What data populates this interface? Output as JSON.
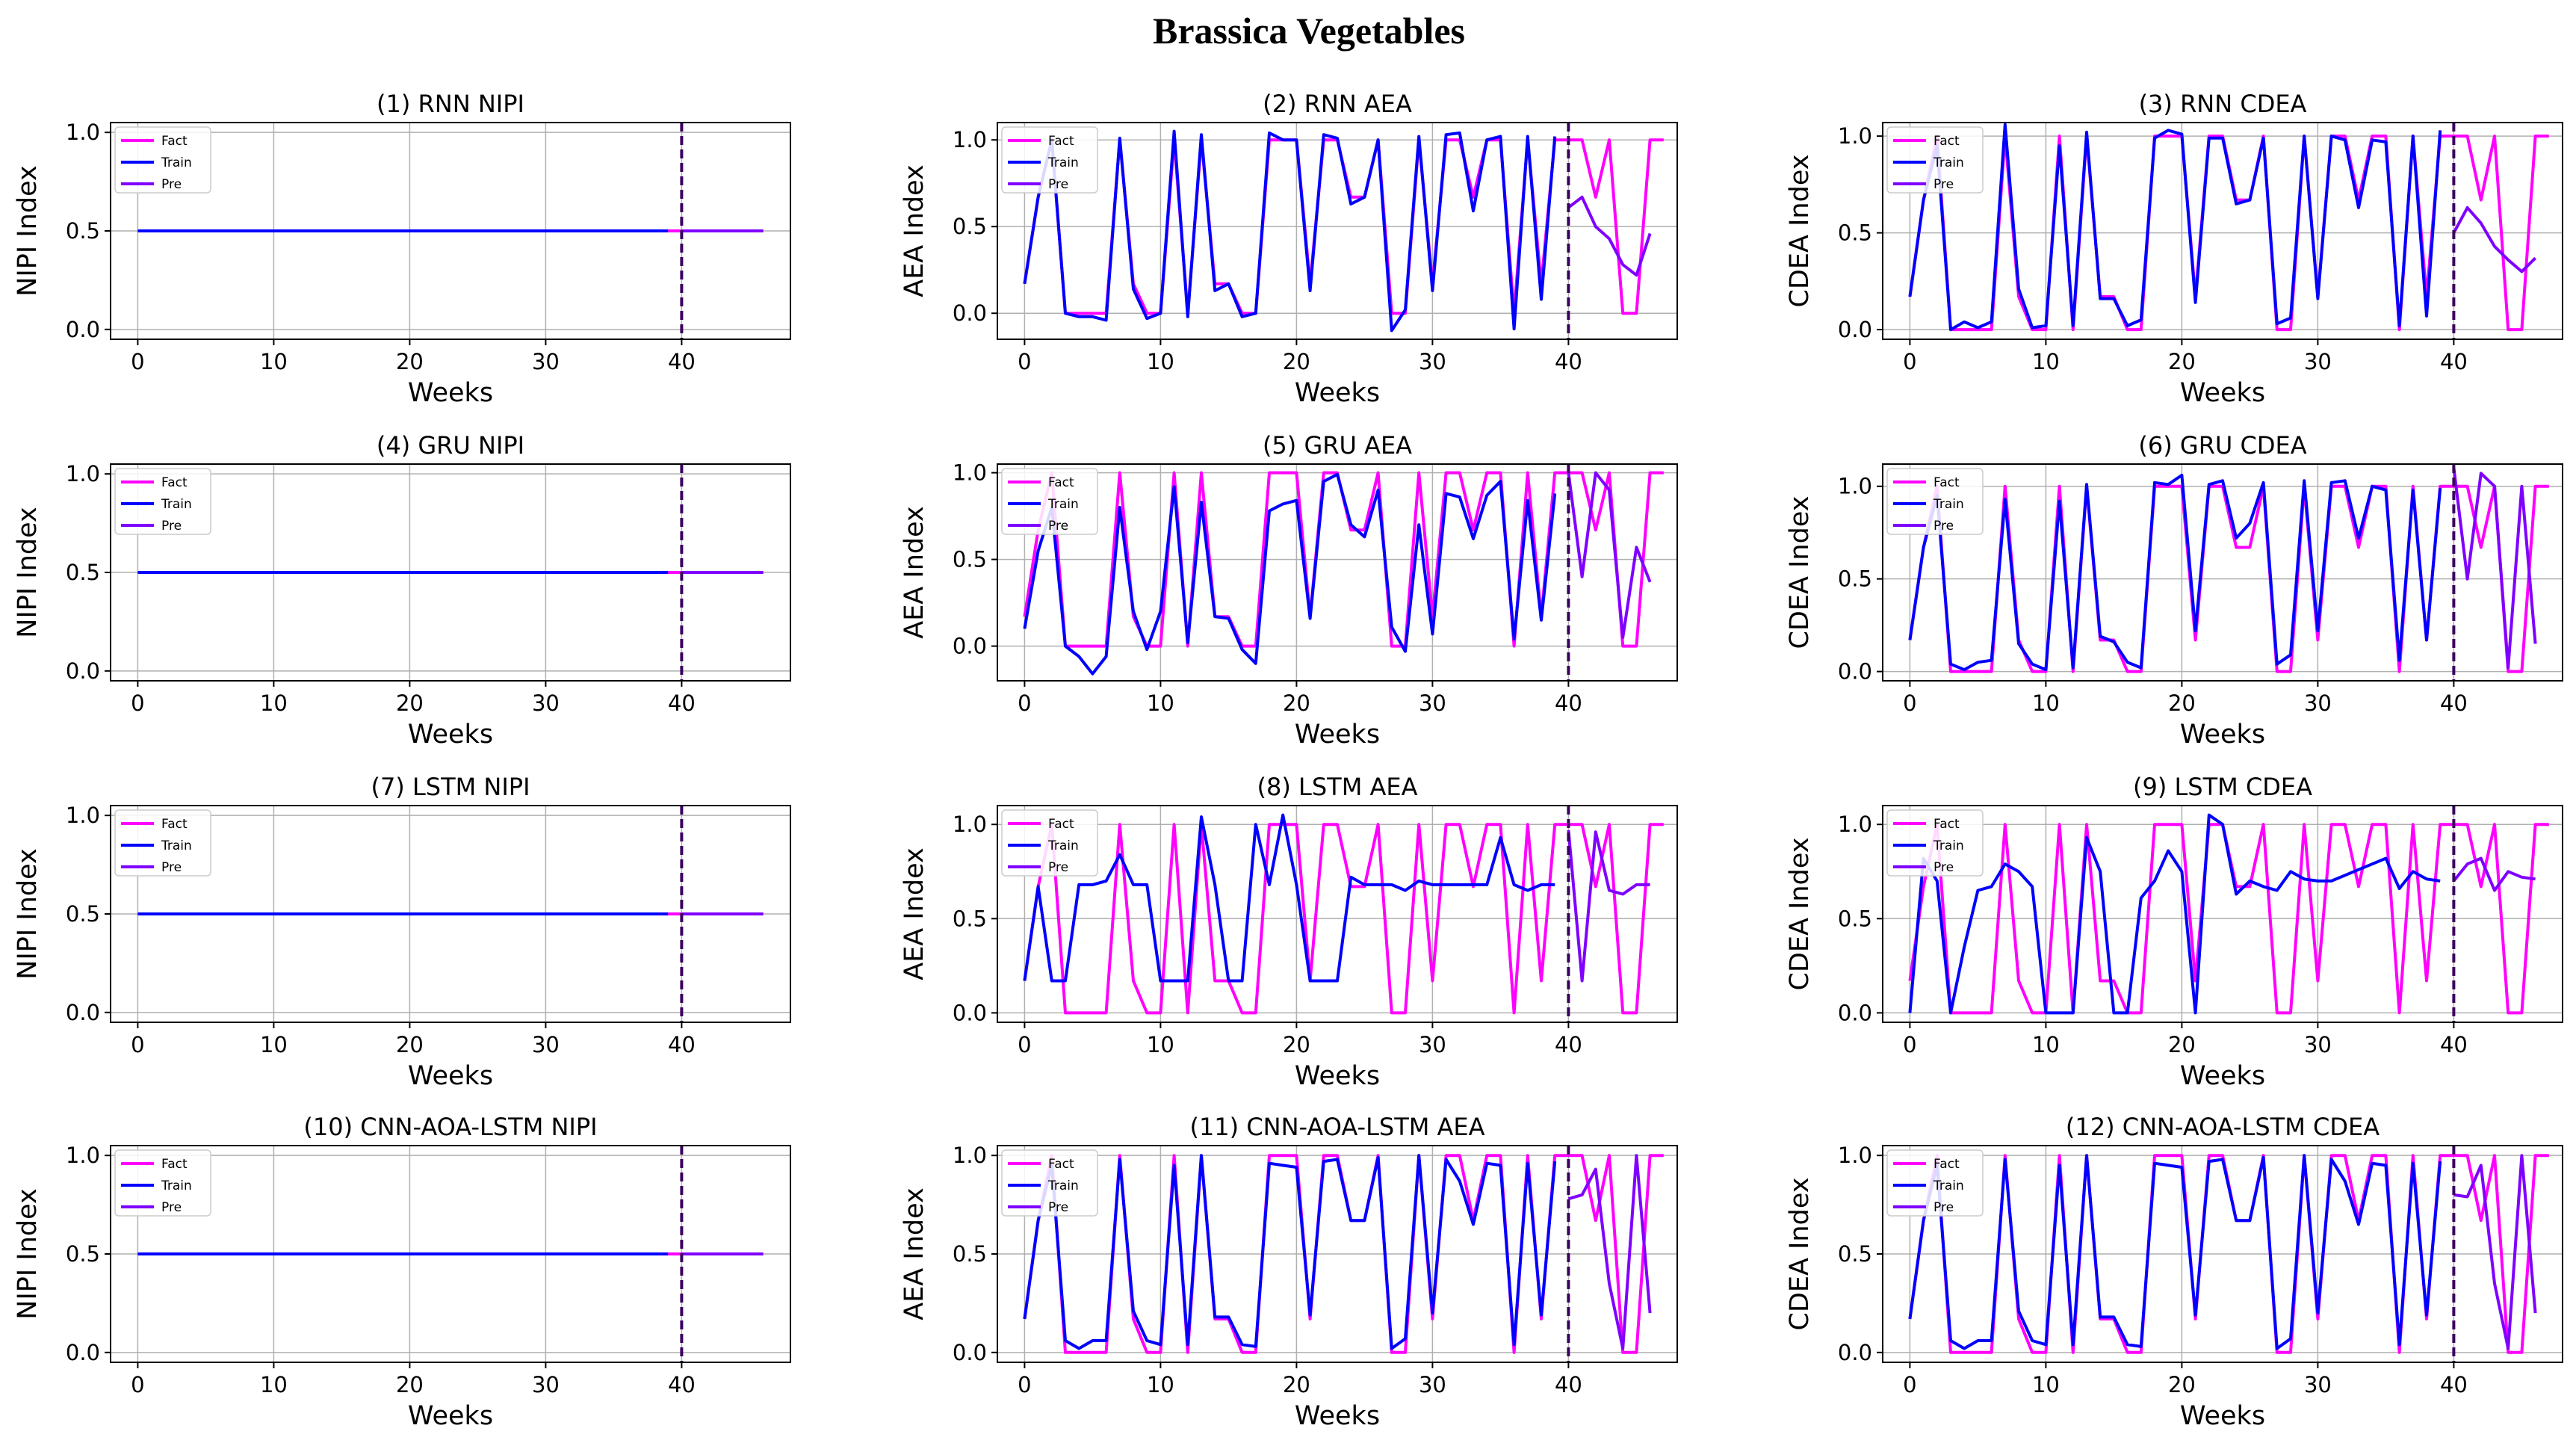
{
  "figure_title": "Brassica Vegetables",
  "colors": {
    "fact": "#ff00ff",
    "train": "#0000ff",
    "pre": "#7f00ff",
    "divider": "#3a005f",
    "grid": "#b0b0b0"
  },
  "legend_labels": [
    "Fact",
    "Train",
    "Pre"
  ],
  "chart_data": [
    {
      "type": "line",
      "title": "(1) RNN  NIPI",
      "xlabel": "Weeks",
      "ylabel": "NIPI Index",
      "xlim": [
        -2,
        48
      ],
      "ylim": [
        -0.05,
        1.05
      ],
      "xticks": [
        0,
        10,
        20,
        30,
        40
      ],
      "yticks": [
        0.0,
        0.5,
        1.0
      ],
      "split_x": 40,
      "legend": "upper-left",
      "fact_x": [
        0,
        46
      ],
      "fact_y": [
        0.5,
        0.5
      ],
      "train_x": [
        0,
        39
      ],
      "train_y": [
        0.5,
        0.5
      ],
      "pre_x": [
        40,
        46
      ],
      "pre_y": [
        0.5,
        0.5
      ]
    },
    {
      "type": "line",
      "title": "(2) RNN  AEA",
      "xlabel": "Weeks",
      "ylabel": "AEA Index",
      "xlim": [
        -2,
        48
      ],
      "ylim": [
        -0.15,
        1.1
      ],
      "xticks": [
        0,
        10,
        20,
        30,
        40
      ],
      "yticks": [
        0.0,
        0.5,
        1.0
      ],
      "split_x": 40,
      "legend": "upper-left",
      "fact_y": [
        0.17,
        0.67,
        1,
        0,
        0,
        0,
        0,
        1,
        0.17,
        0,
        0,
        1,
        0,
        1,
        0.17,
        0.17,
        0,
        0,
        1,
        1,
        1,
        0.17,
        1,
        1,
        0.67,
        0.67,
        1,
        0,
        0,
        1,
        0.17,
        1,
        1,
        0.67,
        1,
        1,
        0,
        1,
        0.17,
        1,
        1,
        1,
        0.67,
        1,
        0,
        0,
        1,
        1
      ],
      "train_y": [
        0.17,
        0.67,
        1,
        0,
        -0.02,
        -0.02,
        -0.04,
        1.01,
        0.14,
        -0.03,
        0,
        1.05,
        -0.02,
        1.03,
        0.13,
        0.17,
        -0.02,
        0,
        1.04,
        1,
        1,
        0.13,
        1.03,
        1.01,
        0.63,
        0.67,
        1,
        -0.1,
        0.02,
        1.02,
        0.13,
        1.03,
        1.04,
        0.59,
        1,
        1.02,
        -0.09,
        1.02,
        0.08,
        1.02
      ],
      "pre_x": [
        40,
        41,
        42,
        43,
        44,
        45,
        46
      ],
      "pre_y": [
        0.61,
        0.67,
        0.5,
        0.43,
        0.28,
        0.22,
        0.46
      ]
    },
    {
      "type": "line",
      "title": "(3) RNN  CDEA",
      "xlabel": "Weeks",
      "ylabel": "CDEA Index",
      "xlim": [
        -2,
        48
      ],
      "ylim": [
        -0.05,
        1.07
      ],
      "xticks": [
        0,
        10,
        20,
        30,
        40
      ],
      "yticks": [
        0.0,
        0.5,
        1.0
      ],
      "split_x": 40,
      "legend": "upper-left",
      "fact_y": [
        0.17,
        0.67,
        1,
        0,
        0,
        0,
        0,
        1,
        0.17,
        0,
        0,
        1,
        0,
        1,
        0.17,
        0.17,
        0,
        0,
        1,
        1,
        1,
        0.17,
        1,
        1,
        0.67,
        0.67,
        1,
        0,
        0,
        1,
        0.17,
        1,
        1,
        0.67,
        1,
        1,
        0,
        1,
        0.17,
        1,
        1,
        1,
        0.67,
        1,
        0,
        0,
        1,
        1
      ],
      "train_y": [
        0.17,
        0.67,
        0.95,
        0,
        0.04,
        0.01,
        0.04,
        1.06,
        0.21,
        0.01,
        0.02,
        0.95,
        0.02,
        1.02,
        0.16,
        0.16,
        0.02,
        0.05,
        0.99,
        1.03,
        1.01,
        0.14,
        0.99,
        0.99,
        0.65,
        0.67,
        0.99,
        0.03,
        0.06,
        1,
        0.16,
        1,
        0.98,
        0.63,
        0.98,
        0.97,
        0.02,
        1,
        0.07,
        1.03
      ],
      "pre_x": [
        40,
        41,
        42,
        43,
        44,
        45,
        46
      ],
      "pre_y": [
        0.5,
        0.63,
        0.55,
        0.43,
        0.36,
        0.3,
        0.37
      ]
    },
    {
      "type": "line",
      "title": "(4) GRU  NIPI",
      "xlabel": "Weeks",
      "ylabel": "NIPI Index",
      "xlim": [
        -2,
        48
      ],
      "ylim": [
        -0.05,
        1.05
      ],
      "xticks": [
        0,
        10,
        20,
        30,
        40
      ],
      "yticks": [
        0.0,
        0.5,
        1.0
      ],
      "split_x": 40,
      "legend": "upper-left",
      "fact_x": [
        0,
        46
      ],
      "fact_y": [
        0.5,
        0.5
      ],
      "train_x": [
        0,
        39
      ],
      "train_y": [
        0.5,
        0.5
      ],
      "pre_x": [
        40,
        46
      ],
      "pre_y": [
        0.5,
        0.5
      ]
    },
    {
      "type": "line",
      "title": "(5) GRU AEA",
      "xlabel": "Weeks",
      "ylabel": "AEA Index",
      "xlim": [
        -2,
        48
      ],
      "ylim": [
        -0.2,
        1.05
      ],
      "xticks": [
        0,
        10,
        20,
        30,
        40
      ],
      "yticks": [
        0.0,
        0.5,
        1.0
      ],
      "split_x": 40,
      "legend": "upper-left",
      "fact_y": [
        0.17,
        0.67,
        1,
        0,
        0,
        0,
        0,
        1,
        0.17,
        0,
        0,
        1,
        0,
        1,
        0.17,
        0.17,
        0,
        0,
        1,
        1,
        1,
        0.17,
        1,
        1,
        0.67,
        0.67,
        1,
        0,
        0,
        1,
        0.17,
        1,
        1,
        0.67,
        1,
        1,
        0,
        1,
        0.17,
        1,
        1,
        1,
        0.67,
        1,
        0,
        0,
        1,
        1
      ],
      "train_y": [
        0.1,
        0.55,
        0.8,
        0,
        -0.06,
        -0.16,
        -0.06,
        0.8,
        0.2,
        -0.02,
        0.2,
        0.92,
        0.02,
        0.83,
        0.17,
        0.16,
        -0.02,
        -0.1,
        0.78,
        0.82,
        0.84,
        0.16,
        0.95,
        0.99,
        0.7,
        0.63,
        0.9,
        0.11,
        -0.03,
        0.7,
        0.07,
        0.88,
        0.86,
        0.62,
        0.87,
        0.95,
        0.04,
        0.84,
        0.15,
        0.88
      ],
      "pre_x": [
        40,
        41,
        42,
        43,
        44,
        45,
        46
      ],
      "pre_y": [
        1,
        0.4,
        1,
        0.9,
        0.05,
        0.57,
        0.37
      ]
    },
    {
      "type": "line",
      "title": "(6) GRU  CDEA",
      "xlabel": "Weeks",
      "ylabel": "CDEA Index",
      "xlim": [
        -2,
        48
      ],
      "ylim": [
        -0.05,
        1.12
      ],
      "xticks": [
        0,
        10,
        20,
        30,
        40
      ],
      "yticks": [
        0.0,
        0.5,
        1.0
      ],
      "split_x": 40,
      "legend": "upper-left",
      "fact_y": [
        0.17,
        0.67,
        1,
        0,
        0,
        0,
        0,
        1,
        0.17,
        0,
        0,
        1,
        0,
        1,
        0.17,
        0.17,
        0,
        0,
        1,
        1,
        1,
        0.17,
        1,
        1,
        0.67,
        0.67,
        1,
        0,
        0,
        1,
        0.17,
        1,
        1,
        0.67,
        1,
        1,
        0,
        1,
        0.17,
        1,
        1,
        1,
        0.67,
        1,
        0,
        0,
        1,
        1
      ],
      "train_y": [
        0.17,
        0.67,
        0.95,
        0.04,
        0.01,
        0.05,
        0.06,
        0.93,
        0.15,
        0.04,
        0.01,
        0.92,
        0.02,
        1.01,
        0.19,
        0.16,
        0.05,
        0.02,
        1.02,
        1.01,
        1.06,
        0.22,
        1.01,
        1.03,
        0.72,
        0.8,
        1.02,
        0.04,
        0.09,
        1.03,
        0.22,
        1.02,
        1.03,
        0.72,
        1,
        0.98,
        0.06,
        0.98,
        0.17,
        0.99
      ],
      "pre_x": [
        40,
        41,
        42,
        43,
        44,
        45,
        46
      ],
      "pre_y": [
        1.1,
        0.5,
        1.07,
        1,
        0.02,
        1,
        0.15
      ]
    },
    {
      "type": "line",
      "title": "(7) LSTM  NIPI",
      "xlabel": "Weeks",
      "ylabel": "NIPI Index",
      "xlim": [
        -2,
        48
      ],
      "ylim": [
        -0.05,
        1.05
      ],
      "xticks": [
        0,
        10,
        20,
        30,
        40
      ],
      "yticks": [
        0.0,
        0.5,
        1.0
      ],
      "split_x": 40,
      "legend": "upper-left",
      "fact_x": [
        0,
        46
      ],
      "fact_y": [
        0.5,
        0.5
      ],
      "train_x": [
        0,
        39
      ],
      "train_y": [
        0.5,
        0.5
      ],
      "pre_x": [
        40,
        46
      ],
      "pre_y": [
        0.5,
        0.5
      ]
    },
    {
      "type": "line",
      "title": "(8) LSTM  AEA",
      "xlabel": "Weeks",
      "ylabel": "AEA Index",
      "xlim": [
        -2,
        48
      ],
      "ylim": [
        -0.05,
        1.1
      ],
      "xticks": [
        0,
        10,
        20,
        30,
        40
      ],
      "yticks": [
        0.0,
        0.5,
        1.0
      ],
      "split_x": 40,
      "legend": "upper-left",
      "fact_y": [
        0.17,
        0.67,
        1,
        0,
        0,
        0,
        0,
        1,
        0.17,
        0,
        0,
        1,
        0,
        1,
        0.17,
        0.17,
        0,
        0,
        1,
        1,
        1,
        0.17,
        1,
        1,
        0.67,
        0.67,
        1,
        0,
        0,
        1,
        0.17,
        1,
        1,
        0.67,
        1,
        1,
        0,
        1,
        0.17,
        1,
        1,
        1,
        0.67,
        1,
        0,
        0,
        1,
        1
      ],
      "train_y": [
        0.17,
        0.67,
        0.17,
        0.17,
        0.68,
        0.68,
        0.7,
        0.84,
        0.68,
        0.68,
        0.17,
        0.17,
        0.17,
        1.04,
        0.68,
        0.17,
        0.17,
        1,
        0.68,
        1.05,
        0.68,
        0.17,
        0.17,
        0.17,
        0.72,
        0.68,
        0.68,
        0.68,
        0.65,
        0.7,
        0.68,
        0.68,
        0.68,
        0.68,
        0.68,
        0.93,
        0.68,
        0.65,
        0.68,
        0.68
      ],
      "pre_x": [
        40,
        41,
        42,
        43,
        44,
        45,
        46
      ],
      "pre_y": [
        0.97,
        0.17,
        0.96,
        0.65,
        0.63,
        0.68,
        0.68
      ]
    },
    {
      "type": "line",
      "title": "(9) LSTM  CDEA",
      "xlabel": "Weeks",
      "ylabel": "CDEA Index",
      "xlim": [
        -2,
        48
      ],
      "ylim": [
        -0.05,
        1.1
      ],
      "xticks": [
        0,
        10,
        20,
        30,
        40
      ],
      "yticks": [
        0.0,
        0.5,
        1.0
      ],
      "split_x": 40,
      "legend": "upper-left",
      "fact_y": [
        0.17,
        0.67,
        1,
        0,
        0,
        0,
        0,
        1,
        0.17,
        0,
        0,
        1,
        0,
        1,
        0.17,
        0.17,
        0,
        0,
        1,
        1,
        1,
        0.17,
        1,
        1,
        0.67,
        0.67,
        1,
        0,
        0,
        1,
        0.17,
        1,
        1,
        0.67,
        1,
        1,
        0,
        1,
        0.17,
        1,
        1,
        1,
        0.67,
        1,
        0,
        0,
        1,
        1
      ],
      "train_y": [
        0,
        0.82,
        0.7,
        0,
        0.35,
        0.65,
        0.67,
        0.79,
        0.75,
        0.67,
        0,
        0,
        0,
        0.93,
        0.75,
        0,
        0,
        0.61,
        0.7,
        0.86,
        0.75,
        0,
        1.05,
        1,
        0.63,
        0.7,
        0.67,
        0.65,
        0.75,
        0.71,
        0.7,
        0.7,
        0.73,
        0.76,
        0.79,
        0.82,
        0.66,
        0.75,
        0.71,
        0.7
      ],
      "pre_x": [
        40,
        41,
        42,
        43,
        44,
        45,
        46
      ],
      "pre_y": [
        0.7,
        0.79,
        0.82,
        0.65,
        0.75,
        0.72,
        0.71
      ]
    },
    {
      "type": "line",
      "title": "(10) CNN-AOA-LSTM  NIPI",
      "xlabel": "Weeks",
      "ylabel": "NIPI Index",
      "xlim": [
        -2,
        48
      ],
      "ylim": [
        -0.05,
        1.05
      ],
      "xticks": [
        0,
        10,
        20,
        30,
        40
      ],
      "yticks": [
        0.0,
        0.5,
        1.0
      ],
      "split_x": 40,
      "legend": "upper-left",
      "fact_x": [
        0,
        46
      ],
      "fact_y": [
        0.5,
        0.5
      ],
      "train_x": [
        0,
        39
      ],
      "train_y": [
        0.5,
        0.5
      ],
      "pre_x": [
        40,
        46
      ],
      "pre_y": [
        0.5,
        0.5
      ]
    },
    {
      "type": "line",
      "title": "(11) CNN-AOA-LSTM  AEA",
      "xlabel": "Weeks",
      "ylabel": "AEA Index",
      "xlim": [
        -2,
        48
      ],
      "ylim": [
        -0.05,
        1.05
      ],
      "xticks": [
        0,
        10,
        20,
        30,
        40
      ],
      "yticks": [
        0.0,
        0.5,
        1.0
      ],
      "split_x": 40,
      "legend": "upper-left",
      "fact_y": [
        0.17,
        0.67,
        1,
        0,
        0,
        0,
        0,
        1,
        0.17,
        0,
        0,
        1,
        0,
        1,
        0.17,
        0.17,
        0,
        0,
        1,
        1,
        1,
        0.17,
        1,
        1,
        0.67,
        0.67,
        1,
        0,
        0,
        1,
        0.17,
        1,
        1,
        0.67,
        1,
        1,
        0,
        1,
        0.17,
        1,
        1,
        1,
        0.67,
        1,
        0,
        0,
        1,
        1
      ],
      "train_y": [
        0.17,
        0.67,
        0.95,
        0.06,
        0.02,
        0.06,
        0.06,
        0.98,
        0.21,
        0.06,
        0.04,
        0.95,
        0.04,
        1,
        0.18,
        0.18,
        0.04,
        0.03,
        0.96,
        0.95,
        0.94,
        0.19,
        0.97,
        0.98,
        0.67,
        0.67,
        0.99,
        0.02,
        0.07,
        1,
        0.2,
        0.98,
        0.87,
        0.65,
        0.96,
        0.95,
        0.04,
        0.96,
        0.19,
        0.97
      ],
      "pre_x": [
        40,
        41,
        42,
        43,
        44,
        45,
        46
      ],
      "pre_y": [
        0.78,
        0.8,
        0.93,
        0.35,
        0.02,
        1,
        0.2
      ]
    },
    {
      "type": "line",
      "title": "(12) CNN-AOA-LSTM  CDEA",
      "xlabel": "Weeks",
      "ylabel": "CDEA Index",
      "xlim": [
        -2,
        48
      ],
      "ylim": [
        -0.05,
        1.05
      ],
      "xticks": [
        0,
        10,
        20,
        30,
        40
      ],
      "yticks": [
        0.0,
        0.5,
        1.0
      ],
      "split_x": 40,
      "legend": "upper-left",
      "fact_y": [
        0.17,
        0.67,
        1,
        0,
        0,
        0,
        0,
        1,
        0.17,
        0,
        0,
        1,
        0,
        1,
        0.17,
        0.17,
        0,
        0,
        1,
        1,
        1,
        0.17,
        1,
        1,
        0.67,
        0.67,
        1,
        0,
        0,
        1,
        0.17,
        1,
        1,
        0.67,
        1,
        1,
        0,
        1,
        0.17,
        1,
        1,
        1,
        0.67,
        1,
        0,
        0,
        1,
        1
      ],
      "train_y": [
        0.17,
        0.67,
        0.95,
        0.06,
        0.02,
        0.06,
        0.06,
        0.98,
        0.21,
        0.06,
        0.04,
        0.95,
        0.04,
        1,
        0.18,
        0.18,
        0.04,
        0.03,
        0.96,
        0.95,
        0.94,
        0.19,
        0.97,
        0.98,
        0.67,
        0.67,
        0.99,
        0.02,
        0.07,
        1,
        0.2,
        0.98,
        0.87,
        0.65,
        0.96,
        0.95,
        0.04,
        0.96,
        0.19,
        0.97
      ],
      "pre_x": [
        40,
        41,
        42,
        43,
        44,
        45,
        46
      ],
      "pre_y": [
        0.8,
        0.79,
        0.95,
        0.35,
        0.02,
        1,
        0.2
      ]
    }
  ]
}
